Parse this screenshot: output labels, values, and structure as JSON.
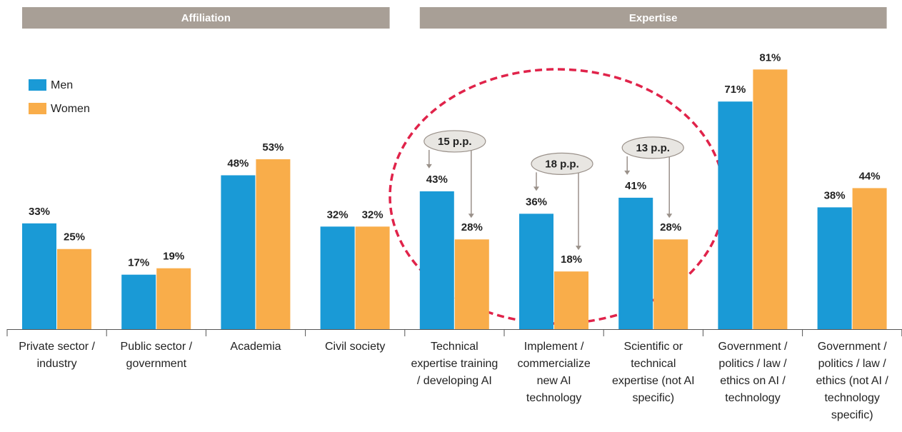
{
  "chart_data": {
    "type": "bar",
    "groups": [
      "Affiliation",
      "Expertise"
    ],
    "categories": [
      "Private sector / industry",
      "Public sector / government",
      "Academia",
      "Civil society",
      "Technical expertise training / developing AI",
      "Implement / commercialize new AI technology",
      "Scientific or technical expertise (not AI specific)",
      "Government / politics / law / ethics on AI / technology",
      "Government / politics / law / ethics (not AI / technology specific)"
    ],
    "series": [
      {
        "name": "Men",
        "color": "#1a9ad6",
        "values": [
          33,
          17,
          48,
          32,
          43,
          36,
          41,
          71,
          38
        ],
        "value_labels": [
          "33%",
          "17%",
          "48%",
          "32%",
          "43%",
          "36%",
          "41%",
          "71%",
          "38%"
        ]
      },
      {
        "name": "Women",
        "color": "#f9ad4a",
        "values": [
          25,
          19,
          53,
          32,
          28,
          18,
          28,
          81,
          44
        ],
        "value_labels": [
          "25%",
          "19%",
          "53%",
          "32%",
          "28%",
          "18%",
          "28%",
          "81%",
          "44%"
        ]
      }
    ],
    "annotations": [
      "15 p.p.",
      "18 p.p.",
      "13 p.p."
    ],
    "legend": "upper left"
  }
}
